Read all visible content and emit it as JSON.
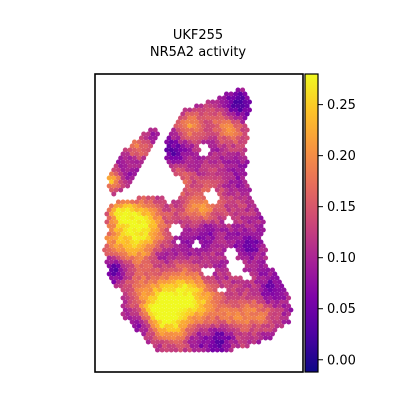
{
  "chart_data": {
    "type": "heatmap",
    "title_line1": "UKF255",
    "title_line2": "NR5A2 activity",
    "xlabel": "",
    "ylabel": "",
    "colorbar": {
      "colormap": "plasma",
      "range": [
        -0.012,
        0.28
      ],
      "ticks": [
        0.0,
        0.05,
        0.1,
        0.15,
        0.2,
        0.25
      ],
      "tick_labels": [
        "0.00",
        "0.05",
        "0.10",
        "0.15",
        "0.20",
        "0.25"
      ]
    },
    "tissue_region": {
      "description_marks": "hexagonal spatial spots",
      "min_value": -0.01,
      "max_value": 0.28
    }
  }
}
